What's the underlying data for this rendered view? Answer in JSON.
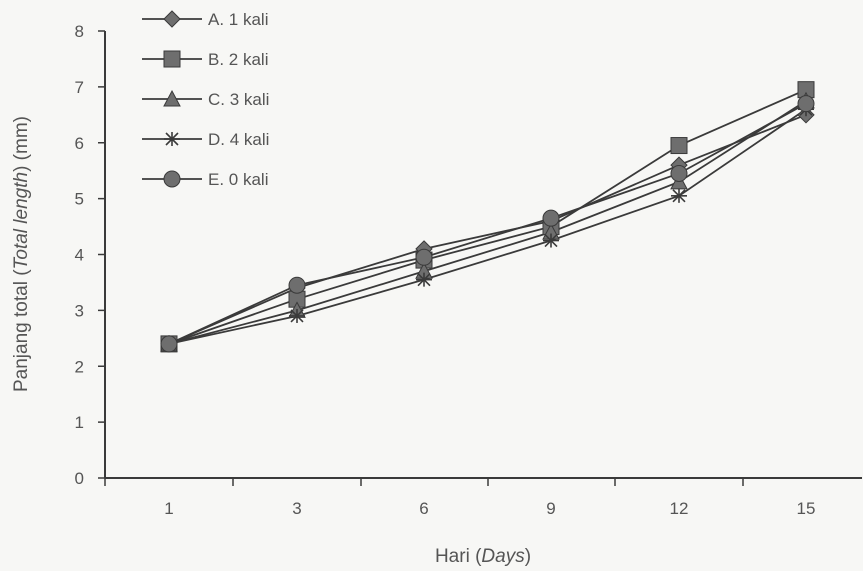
{
  "chart_data": {
    "type": "line",
    "x": [
      1,
      3,
      6,
      9,
      12,
      15
    ],
    "x_tick_labels": [
      "1",
      "3",
      "6",
      "9",
      "12",
      "15"
    ],
    "ylim": [
      0,
      8
    ],
    "y_ticks": [
      "0",
      "1",
      "2",
      "3",
      "4",
      "5",
      "6",
      "7",
      "8"
    ],
    "xlabel": "Hari",
    "xlabel_italic": "Days",
    "ylabel": "Panjang total",
    "ylabel_italic": "Total length",
    "ylabel_unit": "(mm)",
    "grid": false,
    "legend_position": "top-left",
    "series": [
      {
        "name": "A. 1 kali",
        "marker": "diamond",
        "values": [
          2.4,
          3.4,
          4.1,
          4.6,
          5.6,
          6.5
        ]
      },
      {
        "name": "B. 2 kali",
        "marker": "square",
        "values": [
          2.4,
          3.2,
          3.9,
          4.5,
          5.95,
          6.95
        ]
      },
      {
        "name": "C. 3 kali",
        "marker": "triangle",
        "values": [
          2.4,
          3.0,
          3.7,
          4.4,
          5.3,
          6.75
        ]
      },
      {
        "name": "D. 4 kali",
        "marker": "star",
        "values": [
          2.4,
          2.9,
          3.55,
          4.25,
          5.05,
          6.6
        ]
      },
      {
        "name": "E. 0 kali",
        "marker": "circle",
        "values": [
          2.4,
          3.45,
          3.95,
          4.65,
          5.45,
          6.7
        ]
      }
    ],
    "colors": {
      "line": "#3a3a3a",
      "marker": "#6e6e6e",
      "axis": "#3a3a3a",
      "text": "#555555"
    }
  }
}
